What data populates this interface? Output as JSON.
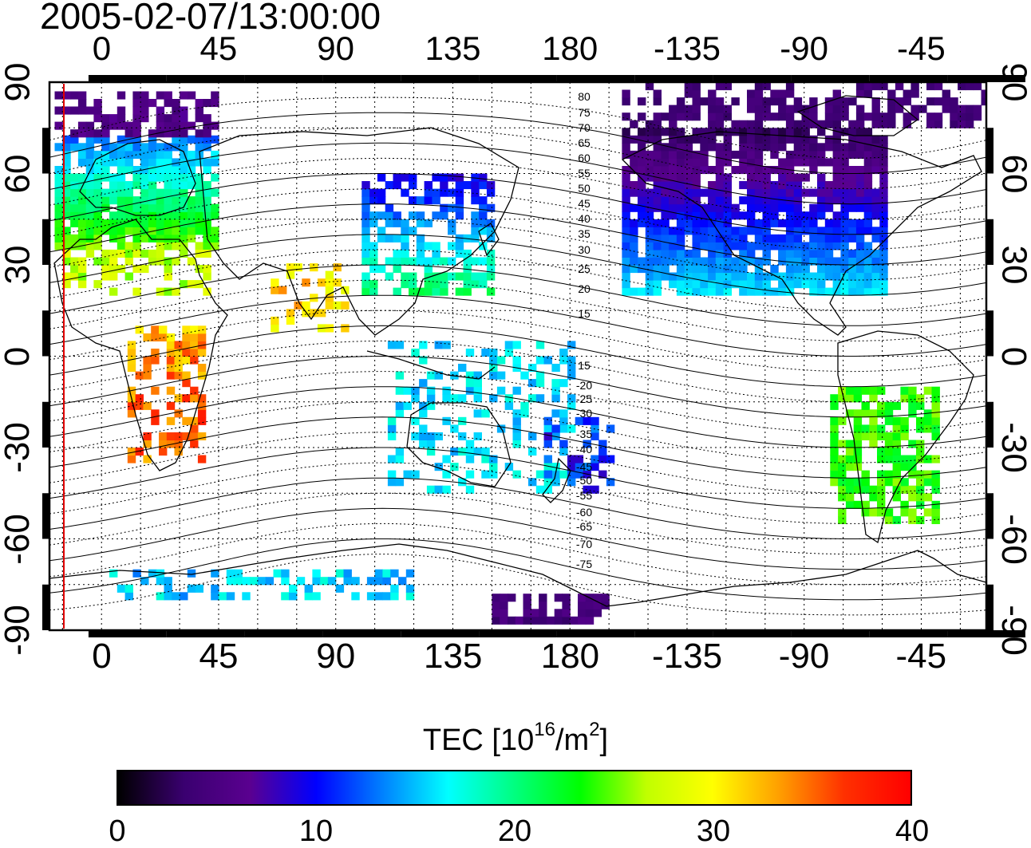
{
  "title": "2005-02-07/13:00:00",
  "lon_ticks": [
    "0",
    "45",
    "90",
    "135",
    "180",
    "-135",
    "-90",
    "-45"
  ],
  "lat_ticks": [
    "90",
    "60",
    "30",
    "0",
    "-30",
    "-60",
    "-90"
  ],
  "colorbar": {
    "label_main": "TEC  [10",
    "label_exp1": "16",
    "label_mid": "/m",
    "label_exp2": "2",
    "label_end": "]",
    "ticks": [
      "0",
      "10",
      "20",
      "30",
      "40"
    ],
    "min": 0,
    "max": 40,
    "colors": [
      "#000000",
      "#3a0070",
      "#5a0090",
      "#0000ff",
      "#0080ff",
      "#00ffff",
      "#00ff80",
      "#00ff00",
      "#c0ff00",
      "#ffff00",
      "#ffa000",
      "#ff3000",
      "#ff0000"
    ]
  },
  "contour_labels": [
    "80",
    "75",
    "70",
    "65",
    "60",
    "55",
    "50",
    "45",
    "40",
    "35",
    "30",
    "25",
    "20",
    "15",
    "15",
    "-20",
    "-25",
    "-30",
    "-35",
    "-40",
    "-45",
    "-50",
    "-55",
    "-60",
    "-65",
    "-70",
    "-75"
  ],
  "map_extent": {
    "lon_min": -20,
    "lon_max": 340,
    "lat_min": -90,
    "lat_max": 90
  },
  "marker_longitude": -15
}
